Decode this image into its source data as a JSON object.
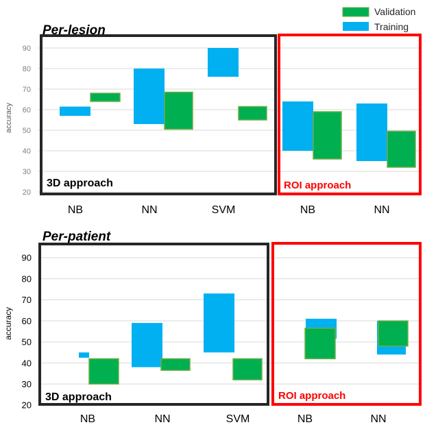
{
  "legend": {
    "items": [
      {
        "label": "Validation",
        "color": "#00b050",
        "stroke": "#70ad47"
      },
      {
        "label": "Training",
        "color": "#00b0f0",
        "stroke": "#00b0f0"
      }
    ]
  },
  "chart_data": [
    {
      "type": "bar",
      "variant": "floating",
      "title": "Per-lesion",
      "ylabel": "accuracy",
      "ylim": [
        20,
        90
      ],
      "yticks": [
        20,
        30,
        40,
        50,
        60,
        70,
        80,
        90
      ],
      "grid": true,
      "categories": [
        "NB",
        "NN",
        "SVM",
        "NB",
        "NN"
      ],
      "series": [
        {
          "name": "Training",
          "color": "#00b0f0",
          "low": [
            57,
            53,
            76,
            40,
            35
          ],
          "high": [
            61.5,
            80,
            90,
            64,
            63
          ]
        },
        {
          "name": "Validation",
          "color": "#00b050",
          "low": [
            64,
            50.5,
            55,
            36,
            32
          ],
          "high": [
            68,
            68.5,
            61.5,
            59,
            49.5
          ]
        }
      ],
      "groups": [
        {
          "label": "3D approach",
          "color": "#262626",
          "categories": [
            0,
            1,
            2
          ]
        },
        {
          "label": "ROI approach",
          "color": "#ff0000",
          "categories": [
            3,
            4
          ]
        }
      ]
    },
    {
      "type": "bar",
      "variant": "floating",
      "title": "Per-patient",
      "ylabel": "accuracy",
      "ylim": [
        20,
        90
      ],
      "yticks": [
        20,
        30,
        40,
        50,
        60,
        70,
        80,
        90
      ],
      "grid": true,
      "categories": [
        "NB",
        "NN",
        "SVM",
        "NB",
        "NN"
      ],
      "series": [
        {
          "name": "Training",
          "color": "#00b0f0",
          "low": [
            42.5,
            38,
            45,
            51.5,
            44
          ],
          "high": [
            45,
            59,
            73,
            61,
            60
          ]
        },
        {
          "name": "Validation",
          "color": "#00b050",
          "low": [
            30,
            36.5,
            32,
            42,
            48
          ],
          "high": [
            42,
            42,
            42,
            56.5,
            60
          ]
        }
      ],
      "groups": [
        {
          "label": "3D approach",
          "color": "#262626",
          "categories": [
            0,
            1,
            2
          ]
        },
        {
          "label": "ROI approach",
          "color": "#ff0000",
          "categories": [
            3,
            4
          ]
        }
      ]
    }
  ]
}
